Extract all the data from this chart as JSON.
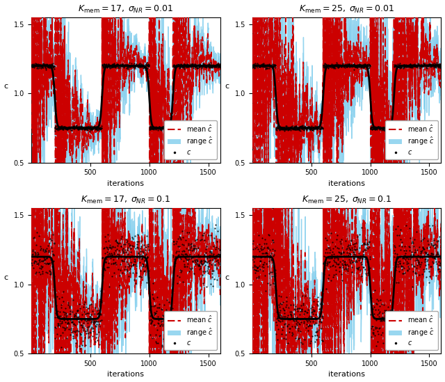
{
  "titles": [
    "$K_{\\mathrm{mem}} = 17,\\; \\sigma_{NR} = 0.01$",
    "$K_{\\mathrm{mem}} = 25,\\; \\sigma_{NR} = 0.01$",
    "$K_{\\mathrm{mem}} = 17,\\; \\sigma_{NR} = 0.1$",
    "$K_{\\mathrm{mem}} = 25,\\; \\sigma_{NR} = 0.1$"
  ],
  "xlabel": "iterations",
  "ylabel": "c",
  "ylim": [
    0.5,
    1.55
  ],
  "xlim": [
    0,
    1600
  ],
  "yticks": [
    0.5,
    1.0,
    1.5
  ],
  "xticks": [
    500,
    1000,
    1500
  ],
  "true_color": "black",
  "mean_color": "#cc0000",
  "range_color": "#6ec6ea",
  "figsize": [
    6.4,
    5.49
  ],
  "dpi": 100,
  "n_iterations": 1601,
  "c_high": 1.2,
  "c_low": 0.75,
  "transitions": [
    200,
    600,
    1000,
    1200
  ],
  "noise_levels": [
    0.01,
    0.01,
    0.1,
    0.1
  ],
  "kmem_values": [
    17,
    25,
    17,
    25
  ]
}
